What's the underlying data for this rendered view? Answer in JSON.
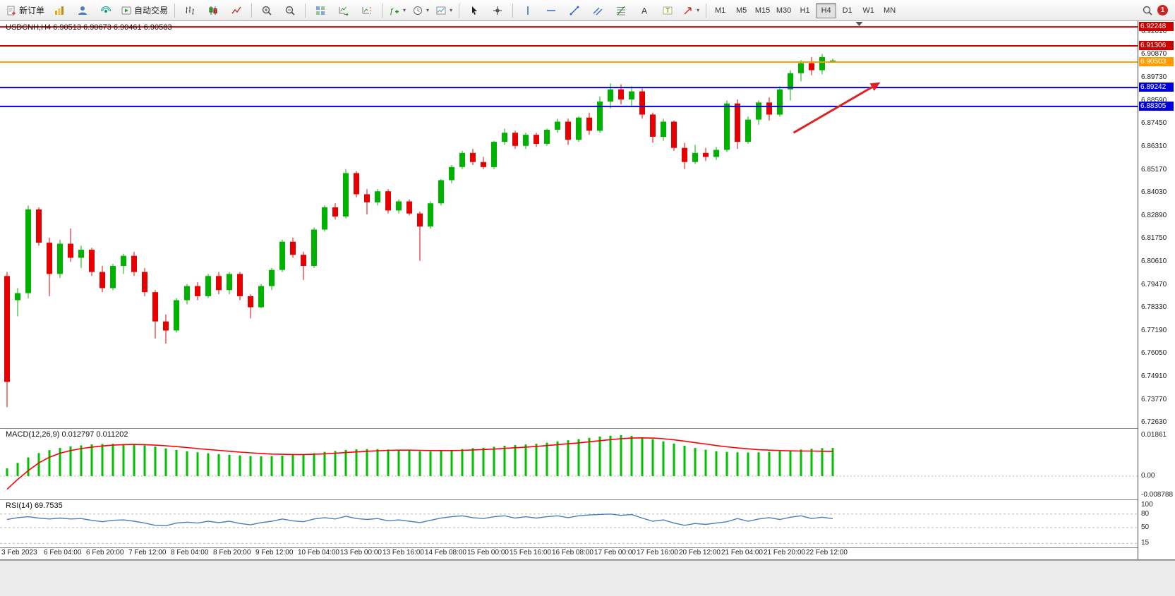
{
  "colors": {
    "bull": "#00b200",
    "bear": "#e60000",
    "macd_hist": "#00c000",
    "macd_signal": "#ff0000",
    "rsi_line": "#4a7ebb",
    "red": "#cc0000",
    "blue": "#0000dd",
    "orange": "#ff9d00",
    "arrow": "#dd2222",
    "grid_dash": "#b8b8b8"
  },
  "toolbar": {
    "new_order_label": "新订单",
    "autotrading_label": "自动交易",
    "timeframes": [
      "M1",
      "M5",
      "M15",
      "M30",
      "H1",
      "H4",
      "D1",
      "W1",
      "MN"
    ],
    "active_timeframe": "H4",
    "notification_count": "1",
    "icons": [
      "new-order-icon",
      "market-watch-icon",
      "profile-icon",
      "signals-icon",
      "autotrading-icon",
      "bar-chart-icon",
      "candle-chart-icon",
      "line-chart-icon",
      "zoom-in-icon",
      "zoom-out-icon",
      "tile-windows-icon",
      "auto-scroll-icon",
      "chart-shift-icon",
      "indicators-icon",
      "periods-icon",
      "templates-icon",
      "cursor-icon",
      "crosshair-icon",
      "vertical-line-icon",
      "horizontal-line-icon",
      "trendline-icon",
      "equidistant-channel-icon",
      "fibonacci-icon",
      "text-icon",
      "text-label-icon",
      "arrows-icon",
      "search-icon",
      "notification-badge"
    ]
  },
  "chart_data": [
    {
      "type": "candlestick",
      "title": "USDCNH,H4 6.90513 6.90673 6.90461 6.90583",
      "symbol": "USDCNH",
      "period": "H4",
      "ohlc_now": {
        "open": "6.90513",
        "high": "6.90673",
        "low": "6.90461",
        "close": "6.90583"
      },
      "ylim": [
        6.7236,
        6.9253
      ],
      "x0": 10,
      "dx": 15,
      "label_every": 4,
      "shift_marker_bar": 80.5,
      "y_ticks": [
        "6.92010",
        "6.90870",
        "6.89730",
        "6.88590",
        "6.87450",
        "6.86310",
        "6.85170",
        "6.84030",
        "6.82890",
        "6.81750",
        "6.80610",
        "6.79470",
        "6.78330",
        "6.77190",
        "6.76050",
        "6.74910",
        "6.73770",
        "6.72630"
      ],
      "x_labels": [
        "3 Feb 2023",
        "6 Feb 04:00",
        "6 Feb 20:00",
        "7 Feb 12:00",
        "8 Feb 04:00",
        "8 Feb 20:00",
        "9 Feb 12:00",
        "10 Feb 04:00",
        "13 Feb 00:00",
        "13 Feb 16:00",
        "14 Feb 08:00",
        "15 Feb 00:00",
        "15 Feb 16:00",
        "16 Feb 08:00",
        "17 Feb 00:00",
        "17 Feb 16:00",
        "20 Feb 12:00",
        "21 Feb 04:00",
        "21 Feb 20:00",
        "22 Feb 12:00"
      ],
      "hlines": [
        {
          "price": 6.92248,
          "color": "red",
          "label": "6.92248"
        },
        {
          "price": 6.91306,
          "color": "red",
          "label": "6.91306"
        },
        {
          "price": 6.90503,
          "color": "orange",
          "label": "6.90503"
        },
        {
          "price": 6.89242,
          "color": "blue",
          "label": "6.89242"
        },
        {
          "price": 6.88305,
          "color": "blue",
          "label": "6.88305"
        }
      ],
      "arrow": {
        "bar1": 74.3,
        "price1": 6.87,
        "bar2": 82.5,
        "price2": 6.895
      },
      "candles": [
        [
          6.799,
          6.801,
          6.734,
          6.7465
        ],
        [
          6.787,
          6.793,
          6.779,
          6.7905
        ],
        [
          6.7905,
          6.834,
          6.788,
          6.832
        ],
        [
          6.832,
          6.833,
          6.814,
          6.8155
        ],
        [
          6.8155,
          6.818,
          6.789,
          6.8
        ],
        [
          6.8,
          6.817,
          6.798,
          6.815
        ],
        [
          6.815,
          6.8225,
          6.806,
          6.808
        ],
        [
          6.808,
          6.814,
          6.803,
          6.812
        ],
        [
          6.812,
          6.813,
          6.799,
          6.801
        ],
        [
          6.801,
          6.804,
          6.791,
          6.793
        ],
        [
          6.793,
          6.805,
          6.792,
          6.804
        ],
        [
          6.804,
          6.81,
          6.8,
          6.809
        ],
        [
          6.809,
          6.811,
          6.799,
          6.801
        ],
        [
          6.801,
          6.803,
          6.789,
          6.791
        ],
        [
          6.791,
          6.792,
          6.768,
          6.7765
        ],
        [
          6.7765,
          6.78,
          6.7655,
          6.772
        ],
        [
          6.772,
          6.788,
          6.771,
          6.787
        ],
        [
          6.787,
          6.795,
          6.785,
          6.794
        ],
        [
          6.794,
          6.796,
          6.787,
          6.789
        ],
        [
          6.789,
          6.8,
          6.788,
          6.799
        ],
        [
          6.799,
          6.801,
          6.79,
          6.792
        ],
        [
          6.792,
          6.801,
          6.79,
          6.8
        ],
        [
          6.8,
          6.801,
          6.787,
          6.789
        ],
        [
          6.789,
          6.79,
          6.778,
          6.7835
        ],
        [
          6.7835,
          6.795,
          6.783,
          6.794
        ],
        [
          6.794,
          6.803,
          6.792,
          6.802
        ],
        [
          6.802,
          6.817,
          6.801,
          6.816
        ],
        [
          6.816,
          6.818,
          6.808,
          6.8095
        ],
        [
          6.8095,
          6.811,
          6.797,
          6.804
        ],
        [
          6.804,
          6.823,
          6.803,
          6.822
        ],
        [
          6.822,
          6.834,
          6.821,
          6.833
        ],
        [
          6.833,
          6.835,
          6.827,
          6.8285
        ],
        [
          6.8285,
          6.852,
          6.8275,
          6.85
        ],
        [
          6.85,
          6.851,
          6.838,
          6.8395
        ],
        [
          6.8395,
          6.842,
          6.8295,
          6.8355
        ],
        [
          6.8355,
          6.842,
          6.834,
          6.841
        ],
        [
          6.841,
          6.842,
          6.83,
          6.8315
        ],
        [
          6.8315,
          6.837,
          6.83,
          6.836
        ],
        [
          6.836,
          6.837,
          6.829,
          6.83
        ],
        [
          6.83,
          6.831,
          6.8065,
          6.8235
        ],
        [
          6.8235,
          6.836,
          6.8225,
          6.835
        ],
        [
          6.835,
          6.847,
          6.834,
          6.8465
        ],
        [
          6.8465,
          6.854,
          6.845,
          6.853
        ],
        [
          6.853,
          6.861,
          6.852,
          6.86
        ],
        [
          6.86,
          6.862,
          6.854,
          6.8555
        ],
        [
          6.8555,
          6.858,
          6.852,
          6.853
        ],
        [
          6.853,
          6.866,
          6.852,
          6.8655
        ],
        [
          6.8655,
          6.872,
          6.864,
          6.87
        ],
        [
          6.87,
          6.871,
          6.862,
          6.8635
        ],
        [
          6.8635,
          6.87,
          6.862,
          6.869
        ],
        [
          6.869,
          6.87,
          6.863,
          6.8645
        ],
        [
          6.8645,
          6.872,
          6.8635,
          6.8715
        ],
        [
          6.8715,
          6.877,
          6.87,
          6.8755
        ],
        [
          6.8755,
          6.877,
          6.864,
          6.8665
        ],
        [
          6.8665,
          6.878,
          6.8655,
          6.8775
        ],
        [
          6.8775,
          6.88,
          6.869,
          6.871
        ],
        [
          6.871,
          6.888,
          6.87,
          6.8855
        ],
        [
          6.8855,
          6.8945,
          6.882,
          6.8915
        ],
        [
          6.8915,
          6.894,
          6.884,
          6.8865
        ],
        [
          6.8865,
          6.893,
          6.883,
          6.8905
        ],
        [
          6.8905,
          6.892,
          6.877,
          6.879
        ],
        [
          6.879,
          6.88,
          6.865,
          6.868
        ],
        [
          6.868,
          6.877,
          6.866,
          6.8755
        ],
        [
          6.8755,
          6.876,
          6.861,
          6.8625
        ],
        [
          6.8625,
          6.865,
          6.852,
          6.8555
        ],
        [
          6.8555,
          6.864,
          6.8545,
          6.86
        ],
        [
          6.86,
          6.8625,
          6.856,
          6.858
        ],
        [
          6.858,
          6.863,
          6.8565,
          6.8615
        ],
        [
          6.8615,
          6.886,
          6.8605,
          6.8845
        ],
        [
          6.8845,
          6.8865,
          6.862,
          6.8655
        ],
        [
          6.8655,
          6.878,
          6.8645,
          6.8765
        ],
        [
          6.8765,
          6.886,
          6.874,
          6.885
        ],
        [
          6.885,
          6.8875,
          6.876,
          6.879
        ],
        [
          6.879,
          6.893,
          6.878,
          6.8915
        ],
        [
          6.8915,
          6.901,
          6.886,
          6.8995
        ],
        [
          6.8995,
          6.906,
          6.8955,
          6.9045
        ],
        [
          6.9045,
          6.9075,
          6.8985,
          6.901
        ],
        [
          6.901,
          6.909,
          6.899,
          6.9075
        ],
        [
          6.90513,
          6.90673,
          6.90461,
          6.90583
        ]
      ]
    },
    {
      "type": "bar",
      "label": "MACD(12,26,9) 0.012797 0.011202",
      "name": "MACD",
      "params": "12,26,9",
      "value_main": "0.012797",
      "value_signal": "0.011202",
      "ylim": [
        -0.0106,
        0.0215
      ],
      "y_ticks": [
        {
          "v": 0.01861,
          "label": "0.01861"
        },
        {
          "v": 0,
          "label": "0.00"
        },
        {
          "v": -0.008788,
          "label": "-0.008788"
        }
      ],
      "values": [
        0.0035,
        0.006,
        0.0085,
        0.0105,
        0.0118,
        0.0128,
        0.0135,
        0.014,
        0.0144,
        0.0146,
        0.0147,
        0.0146,
        0.0144,
        0.014,
        0.0134,
        0.0126,
        0.0119,
        0.0113,
        0.0108,
        0.0104,
        0.01,
        0.0097,
        0.0094,
        0.0091,
        0.009,
        0.0091,
        0.0093,
        0.0096,
        0.0099,
        0.0104,
        0.011,
        0.0114,
        0.0119,
        0.0122,
        0.0123,
        0.0123,
        0.0121,
        0.0119,
        0.0116,
        0.0113,
        0.0112,
        0.0114,
        0.0118,
        0.0123,
        0.0127,
        0.0129,
        0.0133,
        0.0138,
        0.0141,
        0.0144,
        0.0147,
        0.0152,
        0.0158,
        0.0163,
        0.0168,
        0.0174,
        0.018,
        0.0184,
        0.0186,
        0.0183,
        0.0177,
        0.0168,
        0.0158,
        0.0148,
        0.0138,
        0.0128,
        0.012,
        0.0113,
        0.011,
        0.0108,
        0.0107,
        0.0108,
        0.011,
        0.0113,
        0.0117,
        0.0121,
        0.0124,
        0.0127,
        0.0128
      ],
      "signal": [
        -0.006,
        -0.0015,
        0.0025,
        0.006,
        0.0086,
        0.0104,
        0.0116,
        0.0125,
        0.0132,
        0.0137,
        0.0141,
        0.0143,
        0.0144,
        0.0143,
        0.0141,
        0.0138,
        0.0134,
        0.013,
        0.0125,
        0.0121,
        0.0117,
        0.0113,
        0.0109,
        0.0106,
        0.0103,
        0.01,
        0.0099,
        0.0098,
        0.0098,
        0.0099,
        0.0101,
        0.0104,
        0.0107,
        0.011,
        0.0113,
        0.0115,
        0.0117,
        0.0118,
        0.0118,
        0.0117,
        0.0116,
        0.0116,
        0.0116,
        0.0117,
        0.0119,
        0.0121,
        0.0123,
        0.0126,
        0.0129,
        0.0132,
        0.0135,
        0.0139,
        0.0143,
        0.0147,
        0.0151,
        0.0156,
        0.0161,
        0.0166,
        0.017,
        0.0173,
        0.0174,
        0.0173,
        0.017,
        0.0165,
        0.0159,
        0.0152,
        0.0146,
        0.0139,
        0.0133,
        0.0128,
        0.0124,
        0.012,
        0.0118,
        0.0116,
        0.0115,
        0.0114,
        0.0114,
        0.0113,
        0.0112
      ]
    },
    {
      "type": "line",
      "label": "RSI(14) 69.7535",
      "name": "RSI",
      "params": "14",
      "value": "69.7535",
      "ylim": [
        6.25,
        110.9
      ],
      "levels": [
        80,
        50,
        15
      ],
      "y_ticks": [
        {
          "v": 100,
          "label": "100"
        },
        {
          "v": 80,
          "label": "80"
        },
        {
          "v": 50,
          "label": "50"
        },
        {
          "v": 15,
          "label": "15"
        }
      ],
      "values": [
        68,
        72,
        74,
        71,
        69,
        71,
        69,
        70,
        66,
        63,
        66,
        67,
        64,
        60,
        55,
        54,
        60,
        62,
        60,
        64,
        61,
        64,
        59,
        56,
        61,
        64,
        69,
        65,
        63,
        69,
        72,
        69,
        75,
        70,
        68,
        70,
        65,
        67,
        64,
        61,
        66,
        71,
        74,
        76,
        72,
        70,
        74,
        76,
        71,
        74,
        71,
        74,
        76,
        72,
        76,
        78,
        79,
        80,
        77,
        79,
        71,
        64,
        67,
        60,
        55,
        59,
        57,
        60,
        63,
        70,
        64,
        69,
        72,
        68,
        73,
        76,
        70,
        73,
        69.75
      ]
    }
  ]
}
